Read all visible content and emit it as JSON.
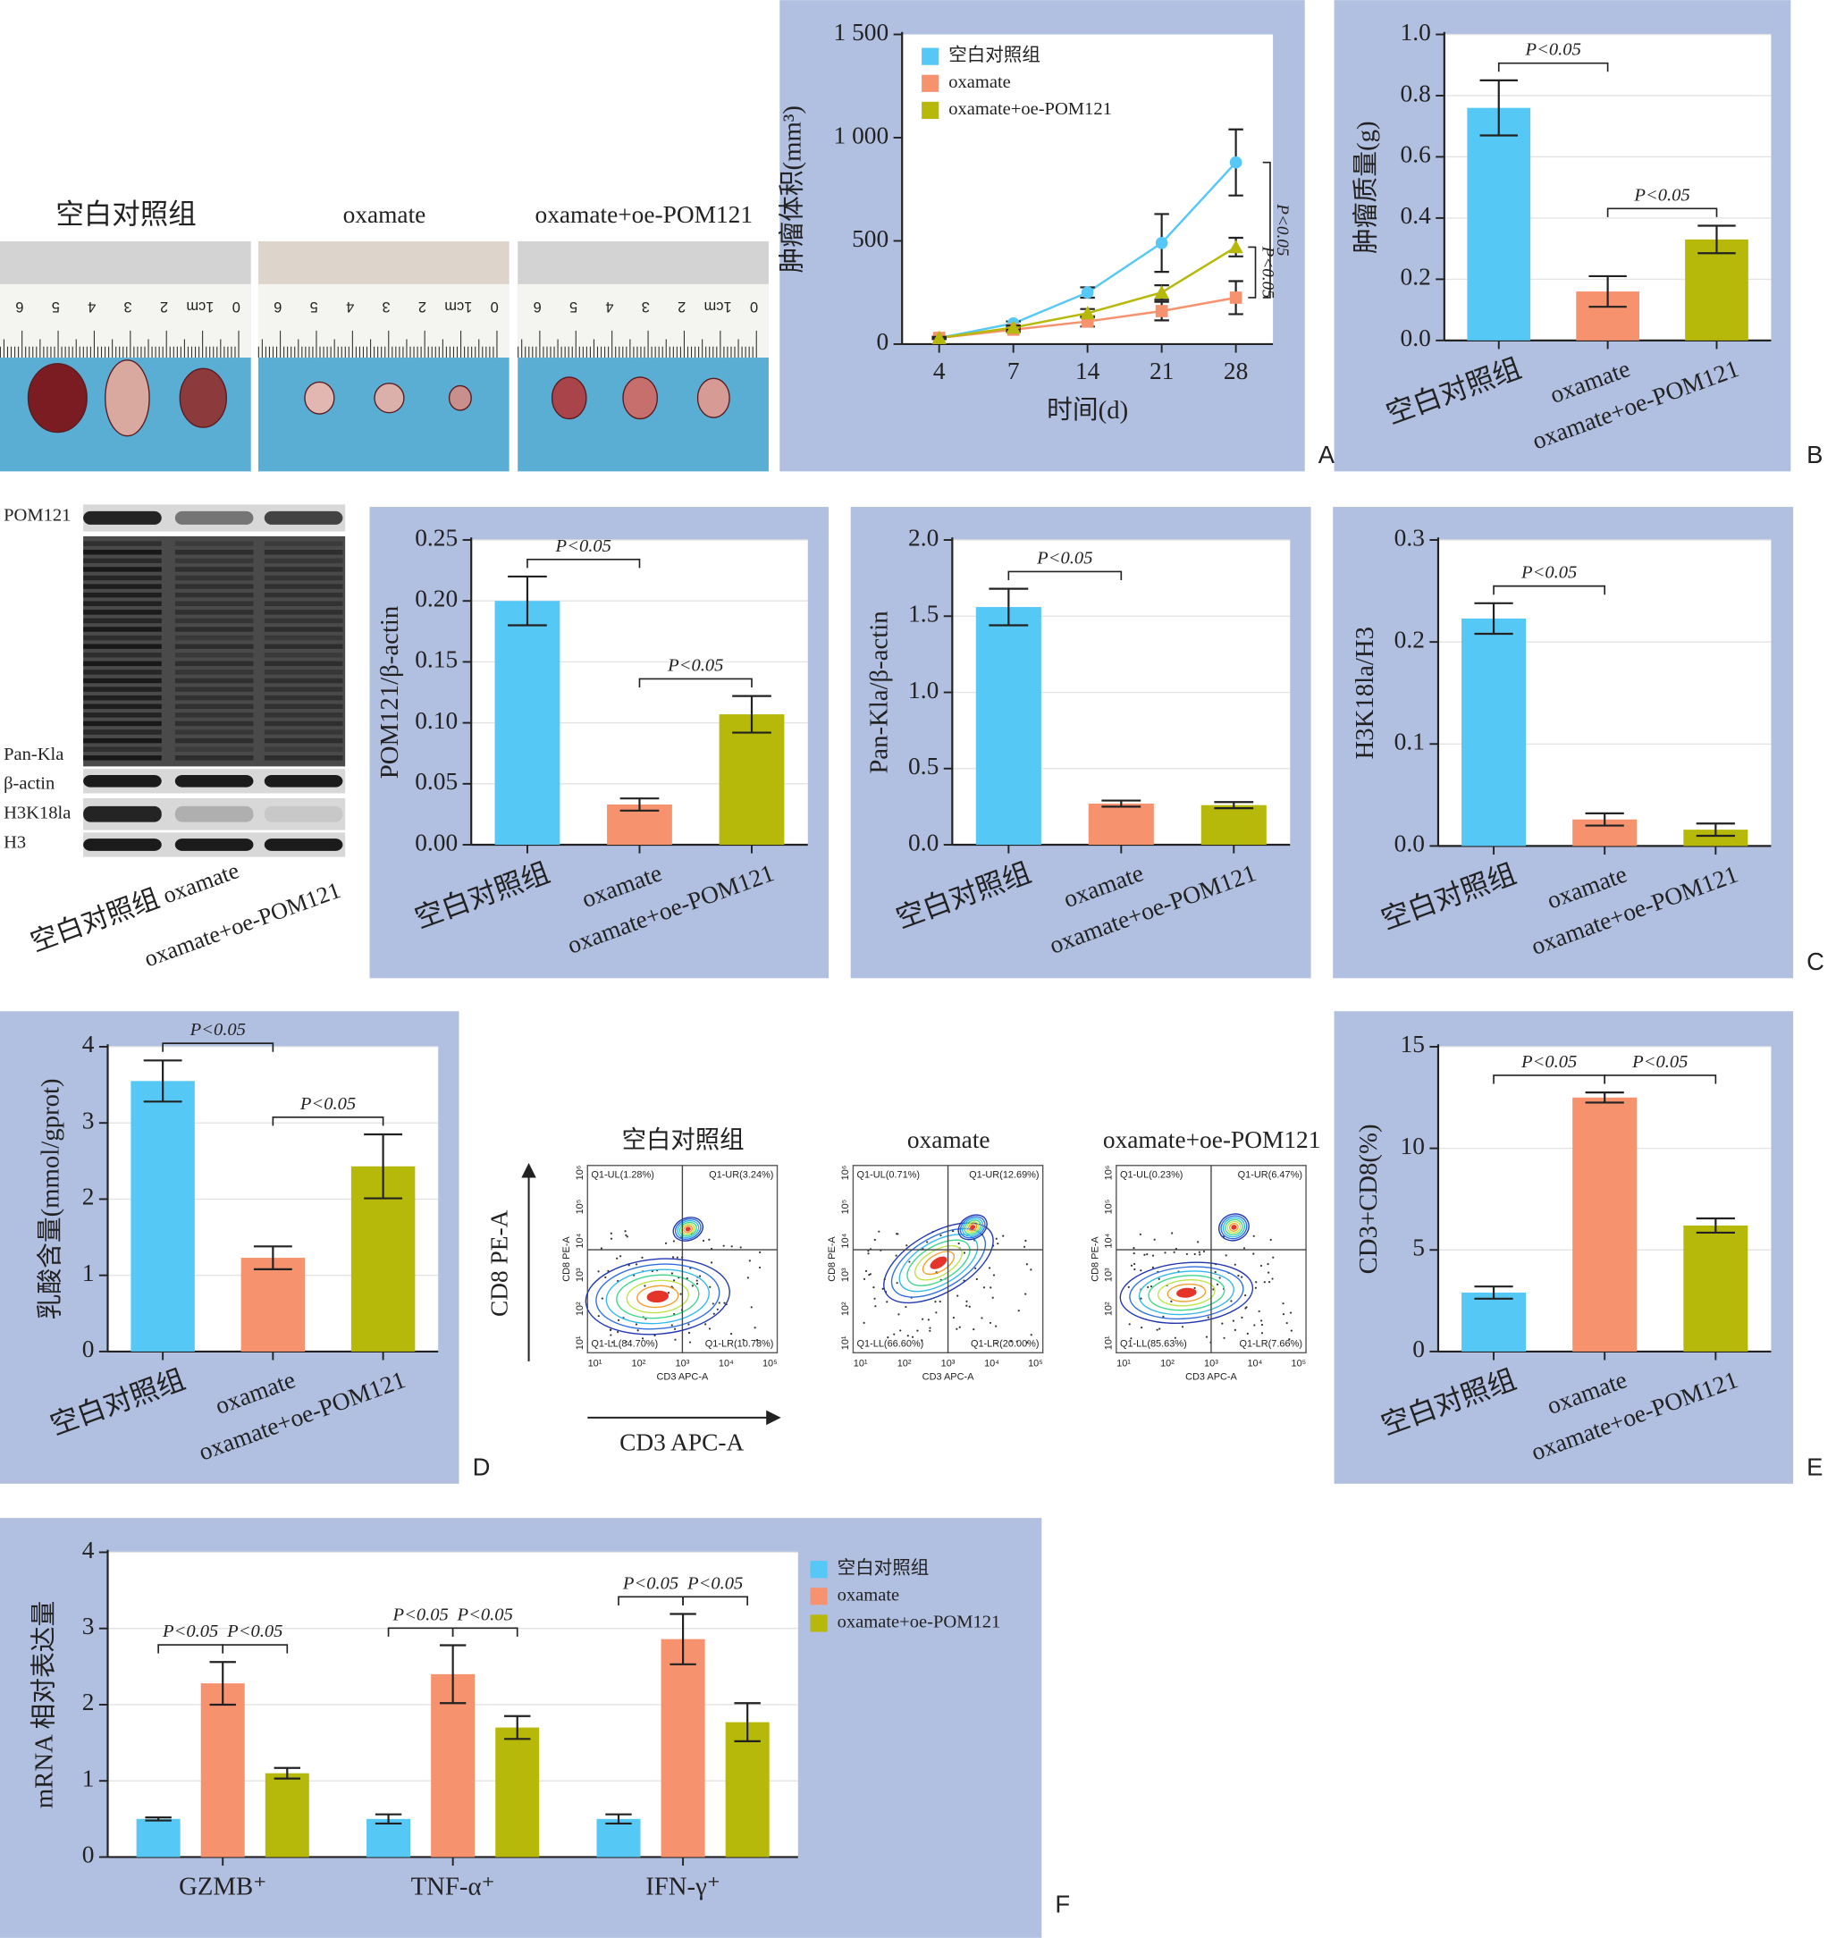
{
  "photos": {
    "titles": [
      "空白对照组",
      "oxamate",
      "oxamate+oe-POM121"
    ],
    "ruler_labels": [
      "6",
      "5",
      "4",
      "3",
      "2",
      "1cm",
      "0"
    ]
  },
  "blot": {
    "labels": [
      "POM121",
      "Pan-Kla",
      "β-actin",
      "H3K18la",
      "H3"
    ],
    "categories": [
      "空白对照组",
      "oxamate",
      "oxamate+oe-POM121"
    ]
  },
  "flow": {
    "titles": [
      "空白对照组",
      "oxamate",
      "oxamate+oe-POM121"
    ],
    "y_label": "CD8 PE-A",
    "x_label": "CD3 APC-A",
    "xticks": [
      "10¹",
      "10²",
      "10³",
      "10⁴",
      "10⁵"
    ],
    "yticks": [
      "10¹",
      "10²",
      "10³",
      "10⁴",
      "10⁵",
      "10⁶"
    ],
    "quadrants": [
      [
        "Q1-UL(1.28%)",
        "Q1-UR(3.24%)",
        "Q1-LL(84.70%)",
        "Q1-LR(10.78%)"
      ],
      [
        "Q1-UL(0.71%)",
        "Q1-UR(12.69%)",
        "Q1-LL(66.60%)",
        "Q1-LR(20.00%)"
      ],
      [
        "Q1-UL(0.23%)",
        "Q1-UR(6.47%)",
        "Q1-LL(85.63%)",
        "Q1-LR(7.66%)"
      ]
    ]
  },
  "panel_letters": [
    "A",
    "B",
    "C",
    "D",
    "E",
    "F"
  ],
  "chart_data": [
    {
      "type": "line",
      "ylabel": "肿瘤体积(mm³)",
      "xlabel": "时间(d)",
      "categories": [
        "4",
        "7",
        "14",
        "21",
        "28"
      ],
      "ylim": [
        0,
        1500
      ],
      "yticks": [
        0,
        500,
        {
          "value": 1000,
          "label": "1 000"
        },
        {
          "value": 1500,
          "label": "1 500"
        }
      ],
      "grid": false,
      "legend": "upper left",
      "series": [
        {
          "name": "空白对照组",
          "color": "#56c8f5",
          "marker": "circle",
          "values": [
            30,
            100,
            250,
            490,
            880
          ],
          "errors": [
            5,
            10,
            25,
            140,
            160
          ]
        },
        {
          "name": "oxamate",
          "color": "#f7926f",
          "marker": "square",
          "values": [
            30,
            70,
            110,
            160,
            225
          ],
          "errors": [
            5,
            10,
            25,
            45,
            80
          ]
        },
        {
          "name": "oxamate+oe-POM121",
          "color": "#b7b90a",
          "marker": "triangle",
          "values": [
            30,
            80,
            150,
            250,
            470
          ],
          "errors": [
            5,
            10,
            20,
            35,
            45
          ]
        }
      ],
      "annotations": [
        "P<0.05",
        "P<0.05"
      ]
    },
    {
      "type": "bar",
      "ylabel": "肿瘤质量(g)",
      "categories": [
        "空白对照组",
        "oxamate",
        "oxamate+oe-POM121"
      ],
      "colors": [
        "#56c8f5",
        "#f7926f",
        "#b7b90a"
      ],
      "values": [
        0.76,
        0.16,
        0.33
      ],
      "errors": [
        0.09,
        0.05,
        0.045
      ],
      "ylim": [
        0,
        1
      ],
      "yticks": [
        {
          "value": 0,
          "label": "0.0"
        },
        0.2,
        0.4,
        0.6,
        0.8,
        {
          "value": 1,
          "label": "1.0"
        }
      ],
      "grid": true,
      "annotations": [
        "P<0.05",
        "P<0.05"
      ]
    },
    {
      "type": "bar",
      "ylabel": "POM121/β-actin",
      "categories": [
        "空白对照组",
        "oxamate",
        "oxamate+oe-POM121"
      ],
      "colors": [
        "#56c8f5",
        "#f7926f",
        "#b7b90a"
      ],
      "values": [
        0.2,
        0.033,
        0.107
      ],
      "errors": [
        0.02,
        0.005,
        0.015
      ],
      "ylim": [
        0,
        0.25
      ],
      "yticks": [
        {
          "value": 0,
          "label": "0.00"
        },
        0.05,
        {
          "value": 0.1,
          "label": "0.10"
        },
        0.15,
        {
          "value": 0.2,
          "label": "0.20"
        },
        0.25
      ],
      "grid": true,
      "annotations": [
        "P<0.05",
        "P<0.05"
      ]
    },
    {
      "type": "bar",
      "ylabel": "Pan-Kla/β-actin",
      "categories": [
        "空白对照组",
        "oxamate",
        "oxamate+oe-POM121"
      ],
      "colors": [
        "#56c8f5",
        "#f7926f",
        "#b7b90a"
      ],
      "values": [
        1.56,
        0.27,
        0.26
      ],
      "errors": [
        0.12,
        0.02,
        0.02
      ],
      "ylim": [
        0,
        2
      ],
      "yticks": [
        {
          "value": 0,
          "label": "0.0"
        },
        0.5,
        {
          "value": 1,
          "label": "1.0"
        },
        1.5,
        {
          "value": 2,
          "label": "2.0"
        }
      ],
      "grid": true,
      "annotations": [
        "P<0.05"
      ]
    },
    {
      "type": "bar",
      "ylabel": "H3K18la/H3",
      "categories": [
        "空白对照组",
        "oxamate",
        "oxamate+oe-POM121"
      ],
      "colors": [
        "#56c8f5",
        "#f7926f",
        "#b7b90a"
      ],
      "values": [
        0.223,
        0.026,
        0.016
      ],
      "errors": [
        0.015,
        0.006,
        0.006
      ],
      "ylim": [
        0,
        0.3
      ],
      "yticks": [
        {
          "value": 0,
          "label": "0.0"
        },
        0.1,
        0.2,
        0.3
      ],
      "grid": true,
      "annotations": [
        "P<0.05"
      ]
    },
    {
      "type": "bar",
      "ylabel": "乳酸含量(mmol/gprot)",
      "categories": [
        "空白对照组",
        "oxamate",
        "oxamate+oe-POM121"
      ],
      "colors": [
        "#56c8f5",
        "#f7926f",
        "#b7b90a"
      ],
      "values": [
        3.55,
        1.23,
        2.43
      ],
      "errors": [
        0.27,
        0.15,
        0.42
      ],
      "ylim": [
        0,
        4
      ],
      "yticks": [
        0,
        1,
        2,
        3,
        4
      ],
      "grid": true,
      "annotations": [
        "P<0.05",
        "P<0.05"
      ]
    },
    {
      "type": "bar",
      "ylabel": "CD3+CD8(%)",
      "categories": [
        "空白对照组",
        "oxamate",
        "oxamate+oe-POM121"
      ],
      "colors": [
        "#56c8f5",
        "#f7926f",
        "#b7b90a"
      ],
      "values": [
        2.9,
        12.5,
        6.2
      ],
      "errors": [
        0.3,
        0.25,
        0.35
      ],
      "ylim": [
        0,
        15
      ],
      "yticks": [
        0,
        5,
        10,
        15
      ],
      "grid": true,
      "annotations": [
        "P<0.05",
        "P<0.05"
      ]
    },
    {
      "type": "grouped_bar",
      "ylabel": "mRNA 相对表达量",
      "categories": [
        "GZMB⁺",
        "TNF-α⁺",
        "IFN-γ⁺"
      ],
      "legend": "right outside",
      "ylim": [
        0,
        4
      ],
      "yticks": [
        0,
        1,
        2,
        3,
        4
      ],
      "grid": true,
      "series": [
        {
          "name": "空白对照组",
          "color": "#56c8f5",
          "values": [
            0.5,
            0.5,
            0.5
          ],
          "errors": [
            0.02,
            0.06,
            0.06
          ]
        },
        {
          "name": "oxamate",
          "color": "#f7926f",
          "values": [
            2.28,
            2.4,
            2.86
          ],
          "errors": [
            0.28,
            0.38,
            0.33
          ]
        },
        {
          "name": "oxamate+oe-POM121",
          "color": "#b7b90a",
          "values": [
            1.1,
            1.7,
            1.77
          ],
          "errors": [
            0.07,
            0.15,
            0.25
          ]
        }
      ],
      "annotations": [
        [
          "P<0.05",
          "P<0.05"
        ],
        [
          "P<0.05",
          "P<0.05"
        ],
        [
          "P<0.05",
          "P<0.05"
        ]
      ]
    }
  ]
}
